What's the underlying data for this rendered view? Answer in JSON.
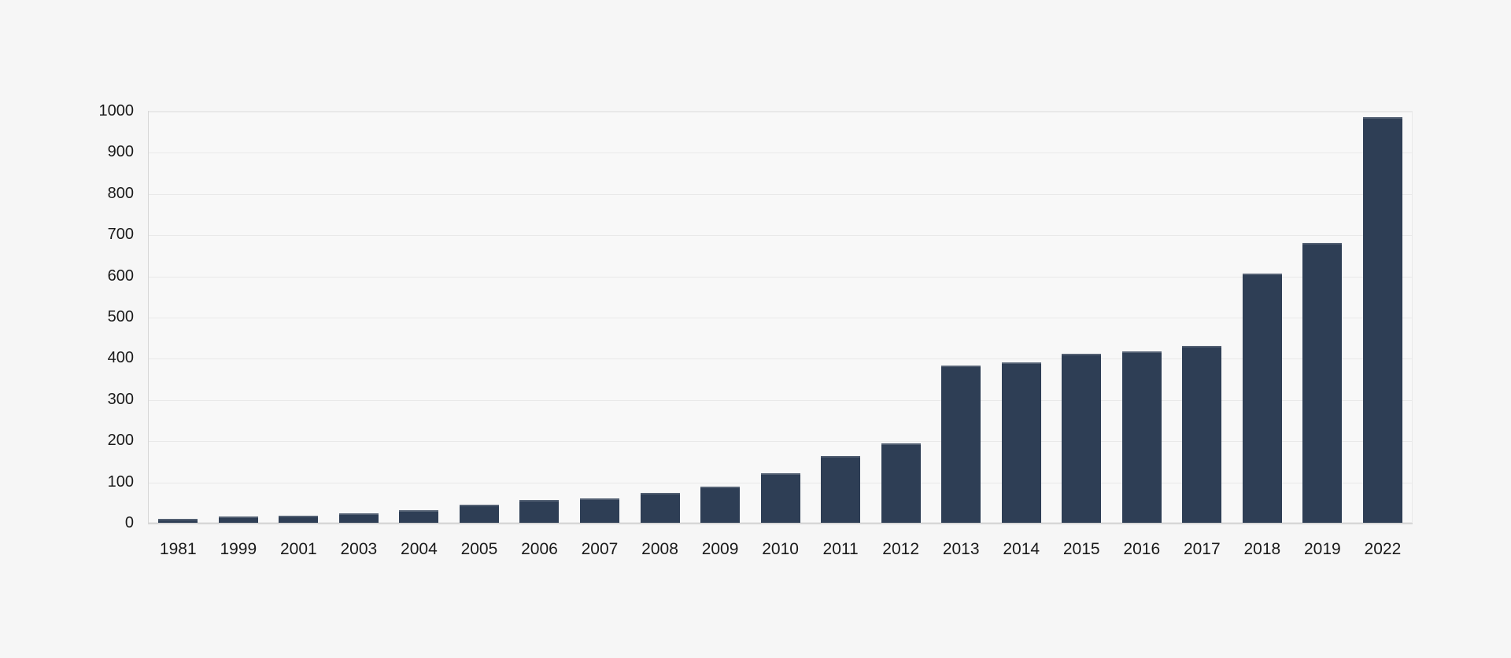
{
  "chart_data": {
    "type": "bar",
    "title": "",
    "xlabel": "",
    "ylabel": "",
    "categories": [
      "1981",
      "1999",
      "2001",
      "2003",
      "2004",
      "2005",
      "2006",
      "2007",
      "2008",
      "2009",
      "2010",
      "2011",
      "2012",
      "2013",
      "2014",
      "2015",
      "2016",
      "2017",
      "2018",
      "2019",
      "2022"
    ],
    "values": [
      10,
      15,
      18,
      22,
      30,
      43,
      55,
      60,
      72,
      88,
      120,
      163,
      192,
      382,
      390,
      411,
      416,
      430,
      605,
      680,
      985
    ],
    "ylim": [
      0,
      1000
    ],
    "yticks": [
      0,
      100,
      200,
      300,
      400,
      500,
      600,
      700,
      800,
      900,
      1000
    ],
    "grid": true,
    "legend": false,
    "colors": {
      "bar": "#2e3e55",
      "page_background": "#f6f6f6",
      "plot_background": "#f8f8f8",
      "gridline": "#e9e9e9",
      "axis_line": "#d7d7d7",
      "text": "#1a1a1a"
    }
  }
}
